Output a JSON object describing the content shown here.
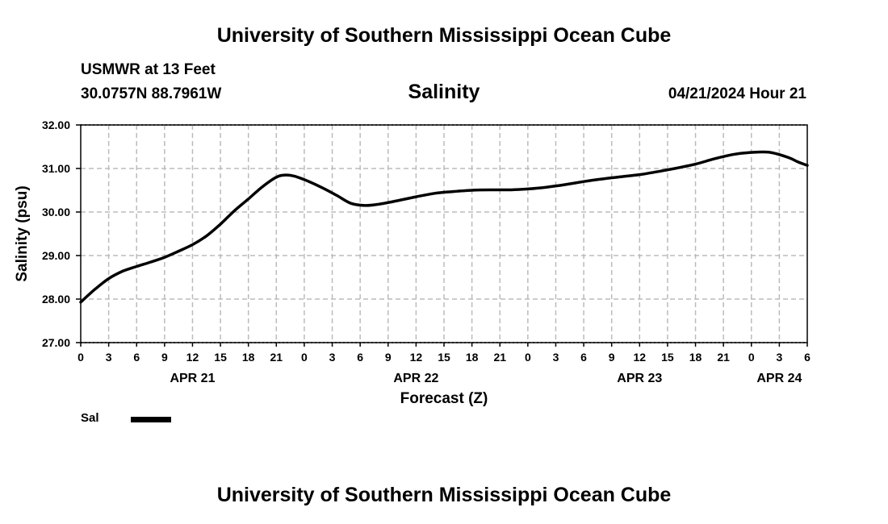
{
  "page": {
    "title": "University of Southern Mississippi Ocean Cube",
    "station": "USMWR at 13 Feet",
    "coords": "30.0757N  88.7961W",
    "subtitle": "Salinity",
    "datetime": "04/21/2024 Hour 21",
    "footer_title": "University of Southern Mississippi Ocean Cube"
  },
  "legend": {
    "label": "Sal",
    "color": "#000000"
  },
  "chart_data": {
    "type": "line",
    "title": "Salinity",
    "xlabel": "Forecast (Z)",
    "ylabel": "Salinity (psu)",
    "ylim": [
      27.0,
      32.0
    ],
    "yticks": [
      "27.00",
      "28.00",
      "29.00",
      "30.00",
      "31.00",
      "32.00"
    ],
    "xlim": [
      0,
      78
    ],
    "xtick_labels": [
      "0",
      "3",
      "6",
      "9",
      "12",
      "15",
      "18",
      "21",
      "0",
      "3",
      "6",
      "9",
      "12",
      "15",
      "18",
      "21",
      "0",
      "3",
      "6",
      "9",
      "12",
      "15",
      "18",
      "21",
      "0",
      "3",
      "6"
    ],
    "day_labels": [
      {
        "label": "APR 21",
        "hour": 12
      },
      {
        "label": "APR 22",
        "hour": 36
      },
      {
        "label": "APR 23",
        "hour": 60
      },
      {
        "label": "APR 24",
        "hour": 75
      }
    ],
    "grid": true,
    "series": [
      {
        "name": "Sal",
        "color": "#000000",
        "x": [
          0,
          1.5,
          3,
          4.5,
          6,
          7.5,
          9,
          10.5,
          12,
          13.5,
          15,
          16.5,
          18,
          19.5,
          21,
          22,
          23,
          24.5,
          26,
          27.5,
          29,
          30.5,
          32,
          34,
          36,
          38,
          40,
          42,
          44,
          46,
          48,
          50,
          52,
          54,
          56,
          58,
          60,
          62,
          64,
          66,
          68,
          70,
          72,
          74,
          76,
          77,
          78
        ],
        "values": [
          27.93,
          28.22,
          28.47,
          28.64,
          28.75,
          28.85,
          28.96,
          29.1,
          29.25,
          29.45,
          29.72,
          30.03,
          30.3,
          30.58,
          30.8,
          30.85,
          30.82,
          30.7,
          30.55,
          30.38,
          30.2,
          30.15,
          30.18,
          30.26,
          30.35,
          30.43,
          30.47,
          30.5,
          30.51,
          30.51,
          30.53,
          30.57,
          30.63,
          30.7,
          30.76,
          30.81,
          30.86,
          30.93,
          31.01,
          31.1,
          31.22,
          31.32,
          31.37,
          31.37,
          31.25,
          31.15,
          31.07
        ]
      }
    ]
  }
}
